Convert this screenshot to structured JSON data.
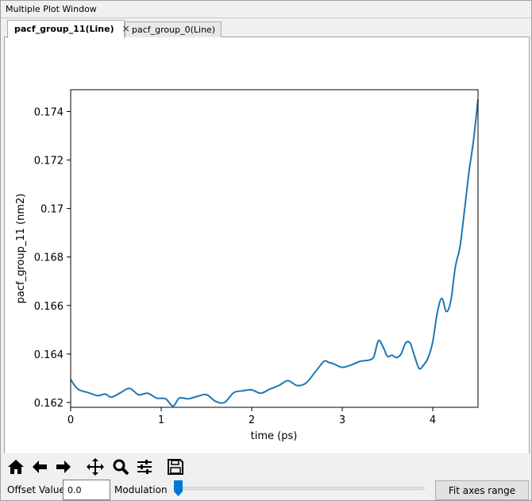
{
  "window": {
    "title": "Multiple Plot Window"
  },
  "tabs": [
    {
      "label": "pacf_group_11(Line)",
      "active": true,
      "close_glyph": "×"
    },
    {
      "label": "pacf_group_0(Line)",
      "active": false
    }
  ],
  "chart_data": {
    "type": "line",
    "title": "",
    "xlabel": "time (ps)",
    "ylabel": "pacf_group_11 (nm2)",
    "xlim": [
      0,
      4.5
    ],
    "ylim": [
      0.1618,
      0.1749
    ],
    "xticks": [
      0,
      1,
      2,
      3,
      4
    ],
    "xtick_labels": [
      "0",
      "1",
      "2",
      "3",
      "4"
    ],
    "yticks": [
      0.162,
      0.164,
      0.166,
      0.168,
      0.17,
      0.172,
      0.174
    ],
    "ytick_labels": [
      "0.162",
      "0.164",
      "0.166",
      "0.168",
      "0.17",
      "0.172",
      "0.174"
    ],
    "grid": false,
    "line_color": "#1f77b4",
    "series": [
      {
        "x": [
          0,
          0.08,
          0.2,
          0.3,
          0.38,
          0.45,
          0.55,
          0.65,
          0.75,
          0.85,
          0.95,
          1.05,
          1.13,
          1.2,
          1.3,
          1.4,
          1.5,
          1.6,
          1.7,
          1.8,
          1.9,
          2.0,
          2.1,
          2.2,
          2.3,
          2.4,
          2.5,
          2.6,
          2.7,
          2.8,
          2.85,
          2.9,
          3.0,
          3.1,
          3.2,
          3.3,
          3.35,
          3.4,
          3.45,
          3.5,
          3.55,
          3.6,
          3.65,
          3.7,
          3.75,
          3.8,
          3.85,
          3.9,
          3.95,
          4.0,
          4.05,
          4.1,
          4.15,
          4.2,
          4.25,
          4.3,
          4.35,
          4.4,
          4.45,
          4.5
        ],
        "y": [
          0.16295,
          0.16255,
          0.1624,
          0.16228,
          0.16235,
          0.16222,
          0.1624,
          0.16258,
          0.16232,
          0.16238,
          0.16218,
          0.16215,
          0.16185,
          0.16218,
          0.16215,
          0.16225,
          0.16232,
          0.16205,
          0.162,
          0.1624,
          0.16248,
          0.16252,
          0.16238,
          0.16255,
          0.1627,
          0.1629,
          0.1627,
          0.1628,
          0.16325,
          0.1637,
          0.16365,
          0.1636,
          0.16345,
          0.16355,
          0.1637,
          0.16375,
          0.1639,
          0.16455,
          0.1643,
          0.1639,
          0.16395,
          0.16385,
          0.164,
          0.16445,
          0.16445,
          0.1639,
          0.1634,
          0.16355,
          0.16385,
          0.1645,
          0.1657,
          0.1663,
          0.16575,
          0.1662,
          0.1676,
          0.1684,
          0.1699,
          0.1715,
          0.1728,
          0.1745
        ]
      }
    ]
  },
  "toolbar": {
    "icons": [
      "home-icon",
      "back-arrow-icon",
      "forward-arrow-icon",
      "pan-icon",
      "zoom-icon",
      "configure-subplots-icon",
      "save-icon"
    ]
  },
  "controls": {
    "offset_label": "Offset Value",
    "offset_value": "0.0",
    "modulation_label": "Modulation",
    "modulation_value": 0,
    "fit_button_label": "Fit axes range"
  }
}
